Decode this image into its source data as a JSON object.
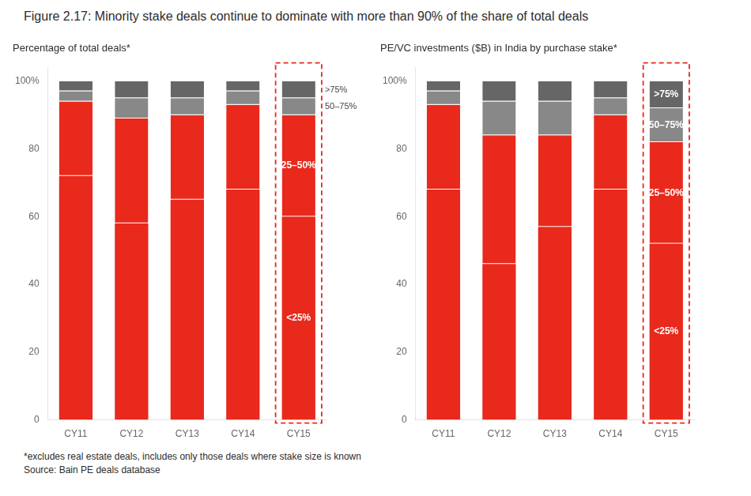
{
  "title": "Figure 2.17: Minority stake deals continue to dominate with more than 90% of the share of total deals",
  "footnotes": [
    "*excludes real estate deals, includes only those deals where stake size is known",
    "Source: Bain PE deals database"
  ],
  "chart_data": [
    {
      "type": "bar",
      "stacked": true,
      "grid": false,
      "legend": false,
      "title": "Percentage of total deals*",
      "categories": [
        "CY11",
        "CY12",
        "CY13",
        "CY14",
        "CY15"
      ],
      "series": [
        {
          "name": "<25%",
          "color": "#e8291c",
          "values": [
            72,
            58,
            65,
            68,
            60
          ]
        },
        {
          "name": "25–50%",
          "color": "#e8291c",
          "values": [
            22,
            31,
            25,
            25,
            30
          ]
        },
        {
          "name": "50–75%",
          "color": "#888888",
          "values": [
            3,
            6,
            5,
            4,
            5
          ]
        },
        {
          "name": ">75%",
          "color": "#666666",
          "values": [
            3,
            5,
            5,
            3,
            5
          ]
        }
      ],
      "ylim": [
        0,
        104
      ],
      "yticks": [
        0,
        20,
        40,
        60,
        80,
        {
          "value": 100,
          "label": "100%"
        }
      ],
      "annotations": [
        {
          "text": "<25%",
          "category": "CY15"
        },
        {
          "text": "25–50%",
          "category": "CY15"
        },
        {
          "text": ">75%",
          "category": "CY15"
        },
        {
          "text": "50–75%",
          "category": "CY15"
        }
      ]
    },
    {
      "type": "bar",
      "stacked": true,
      "grid": false,
      "legend": false,
      "title": "PE/VC investments ($B) in India by purchase stake*",
      "categories": [
        "CY11",
        "CY12",
        "CY13",
        "CY14",
        "CY15"
      ],
      "series": [
        {
          "name": "<25%",
          "color": "#e8291c",
          "values": [
            68,
            46,
            57,
            68,
            52
          ]
        },
        {
          "name": "25–50%",
          "color": "#e8291c",
          "values": [
            25,
            38,
            27,
            22,
            30
          ]
        },
        {
          "name": "50–75%",
          "color": "#888888",
          "values": [
            4,
            10,
            10,
            5,
            10
          ]
        },
        {
          "name": ">75%",
          "color": "#666666",
          "values": [
            3,
            6,
            6,
            5,
            8
          ]
        }
      ],
      "ylim": [
        0,
        104
      ],
      "yticks": [
        0,
        20,
        40,
        60,
        80,
        {
          "value": 100,
          "label": "100%"
        }
      ],
      "annotations": [
        {
          "text": "<25%",
          "category": "CY15"
        },
        {
          "text": "25–50%",
          "category": "CY15"
        },
        {
          "text": ">75%",
          "category": "CY15"
        },
        {
          "text": "50–75%",
          "category": "CY15"
        }
      ]
    }
  ]
}
